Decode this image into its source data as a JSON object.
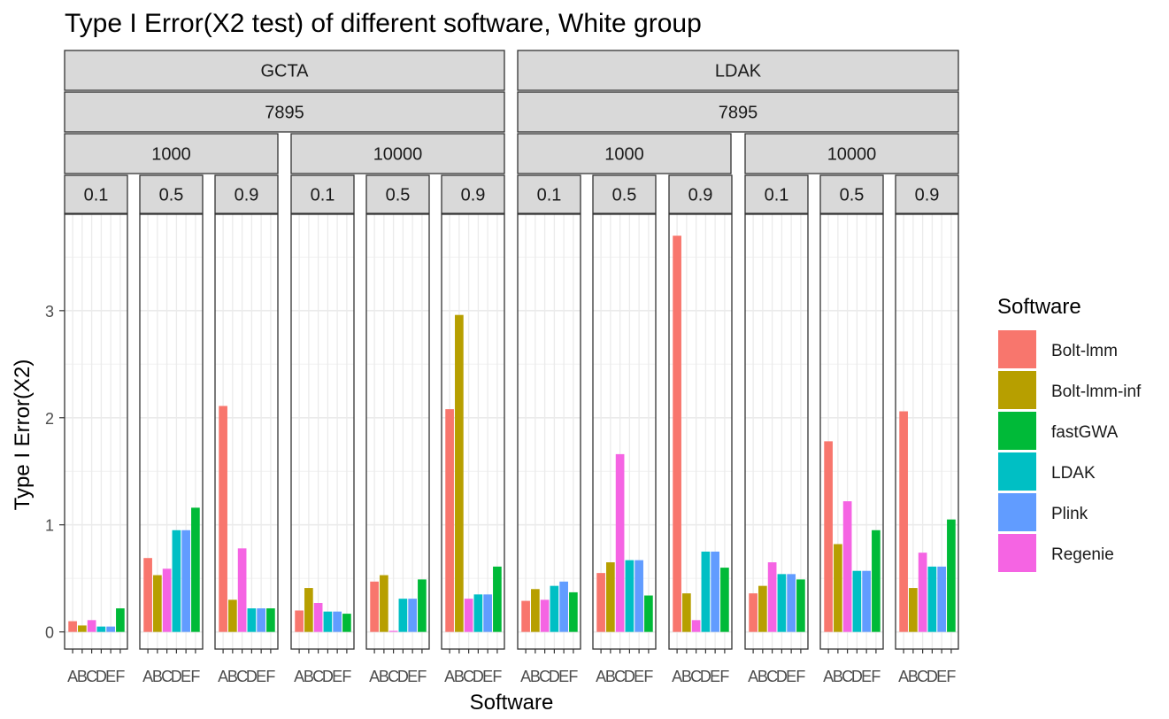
{
  "chart_data": {
    "type": "bar",
    "title": "Type I Error(X2 test) of different software, White group",
    "xlabel": "Software",
    "ylabel": "Type I Error(X2)",
    "y_ticks": [
      "0",
      "1",
      "2",
      "3"
    ],
    "ylim": [
      -0.16,
      3.9
    ],
    "x_categories": [
      "A",
      "B",
      "C",
      "D",
      "E",
      "F"
    ],
    "legend": {
      "title": "Software",
      "position": "right",
      "entries": [
        {
          "name": "Bolt-lmm",
          "color": "#F8766D"
        },
        {
          "name": "Bolt-lmm-inf",
          "color": "#B79F00"
        },
        {
          "name": "fastGWA",
          "color": "#00BA38"
        },
        {
          "name": "LDAK",
          "color": "#00BFC4"
        },
        {
          "name": "Plink",
          "color": "#619CFF"
        },
        {
          "name": "Regenie",
          "color": "#F564E3"
        }
      ]
    },
    "bar_order": [
      "Bolt-lmm",
      "Bolt-lmm-inf",
      "Regenie",
      "LDAK",
      "Plink",
      "fastGWA"
    ],
    "grid": true,
    "facets": {
      "level1": [
        "GCTA",
        "LDAK"
      ],
      "level2": [
        "7895",
        "7895"
      ],
      "level3": [
        "1000",
        "10000",
        "1000",
        "10000"
      ],
      "panels": [
        {
          "label": "0.1",
          "values": [
            0.1,
            0.06,
            0.11,
            0.05,
            0.05,
            0.22
          ]
        },
        {
          "label": "0.5",
          "values": [
            0.69,
            0.53,
            0.59,
            0.95,
            0.95,
            1.16
          ]
        },
        {
          "label": "0.9",
          "values": [
            2.11,
            0.3,
            0.78,
            0.22,
            0.22,
            0.22
          ]
        },
        {
          "label": "0.1",
          "values": [
            0.2,
            0.41,
            0.27,
            0.19,
            0.19,
            0.17
          ]
        },
        {
          "label": "0.5",
          "values": [
            0.47,
            0.53,
            0.01,
            0.31,
            0.31,
            0.49
          ]
        },
        {
          "label": "0.9",
          "values": [
            2.08,
            2.96,
            0.31,
            0.35,
            0.35,
            0.61
          ]
        },
        {
          "label": "0.1",
          "values": [
            0.29,
            0.4,
            0.3,
            0.43,
            0.47,
            0.37
          ]
        },
        {
          "label": "0.5",
          "values": [
            0.55,
            0.65,
            1.66,
            0.67,
            0.67,
            0.34
          ]
        },
        {
          "label": "0.9",
          "values": [
            3.7,
            0.36,
            0.11,
            0.75,
            0.75,
            0.6
          ]
        },
        {
          "label": "0.1",
          "values": [
            0.36,
            0.43,
            0.65,
            0.54,
            0.54,
            0.49
          ]
        },
        {
          "label": "0.5",
          "values": [
            1.78,
            0.82,
            1.22,
            0.57,
            0.57,
            0.95
          ]
        },
        {
          "label": "0.9",
          "values": [
            2.06,
            0.41,
            0.74,
            0.61,
            0.61,
            1.05
          ]
        }
      ]
    }
  }
}
